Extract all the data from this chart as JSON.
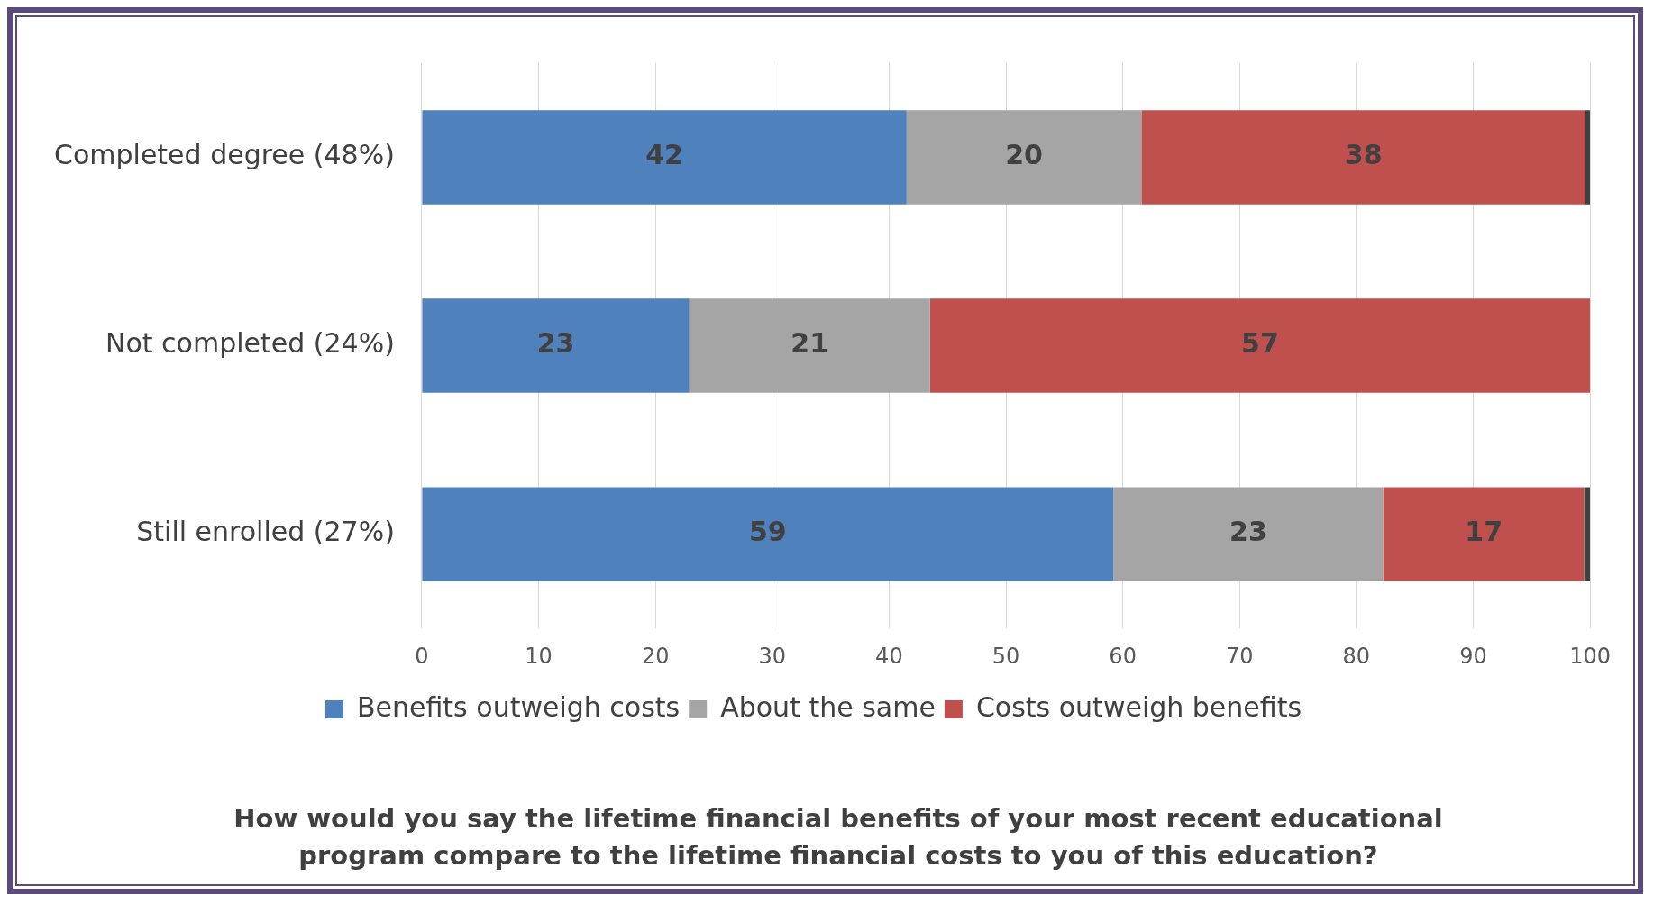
{
  "chart_data": {
    "type": "bar",
    "orientation": "horizontal",
    "stacked": true,
    "title": "How would you say the lifetime financial benefits of your most recent educational program compare to the lifetime financial costs to you of this education?",
    "categories": [
      "Completed degree (48%)",
      "Not completed (24%)",
      "Still enrolled (27%)"
    ],
    "series": [
      {
        "name": "Benefits outweigh costs",
        "color": "#4f81bd",
        "values": [
          41.5,
          22.9,
          59.2
        ],
        "value_labels": [
          "42",
          "23",
          "59"
        ]
      },
      {
        "name": "About the same",
        "color": "#a5a5a5",
        "values": [
          20.1,
          20.6,
          23.1
        ],
        "value_labels": [
          "20",
          "21",
          "23"
        ]
      },
      {
        "name": "Costs outweigh benefits",
        "color": "#c0504d",
        "values": [
          38.0,
          56.5,
          17.2
        ],
        "value_labels": [
          "38",
          "57",
          "17"
        ]
      },
      {
        "color": "#404040",
        "values": [
          0.4,
          null,
          0.5
        ]
      }
    ],
    "xlim": [
      0,
      100
    ],
    "xticks": [
      0,
      10,
      20,
      30,
      40,
      50,
      60,
      70,
      80,
      90,
      100
    ],
    "grid": "x",
    "legend": "bottom"
  }
}
